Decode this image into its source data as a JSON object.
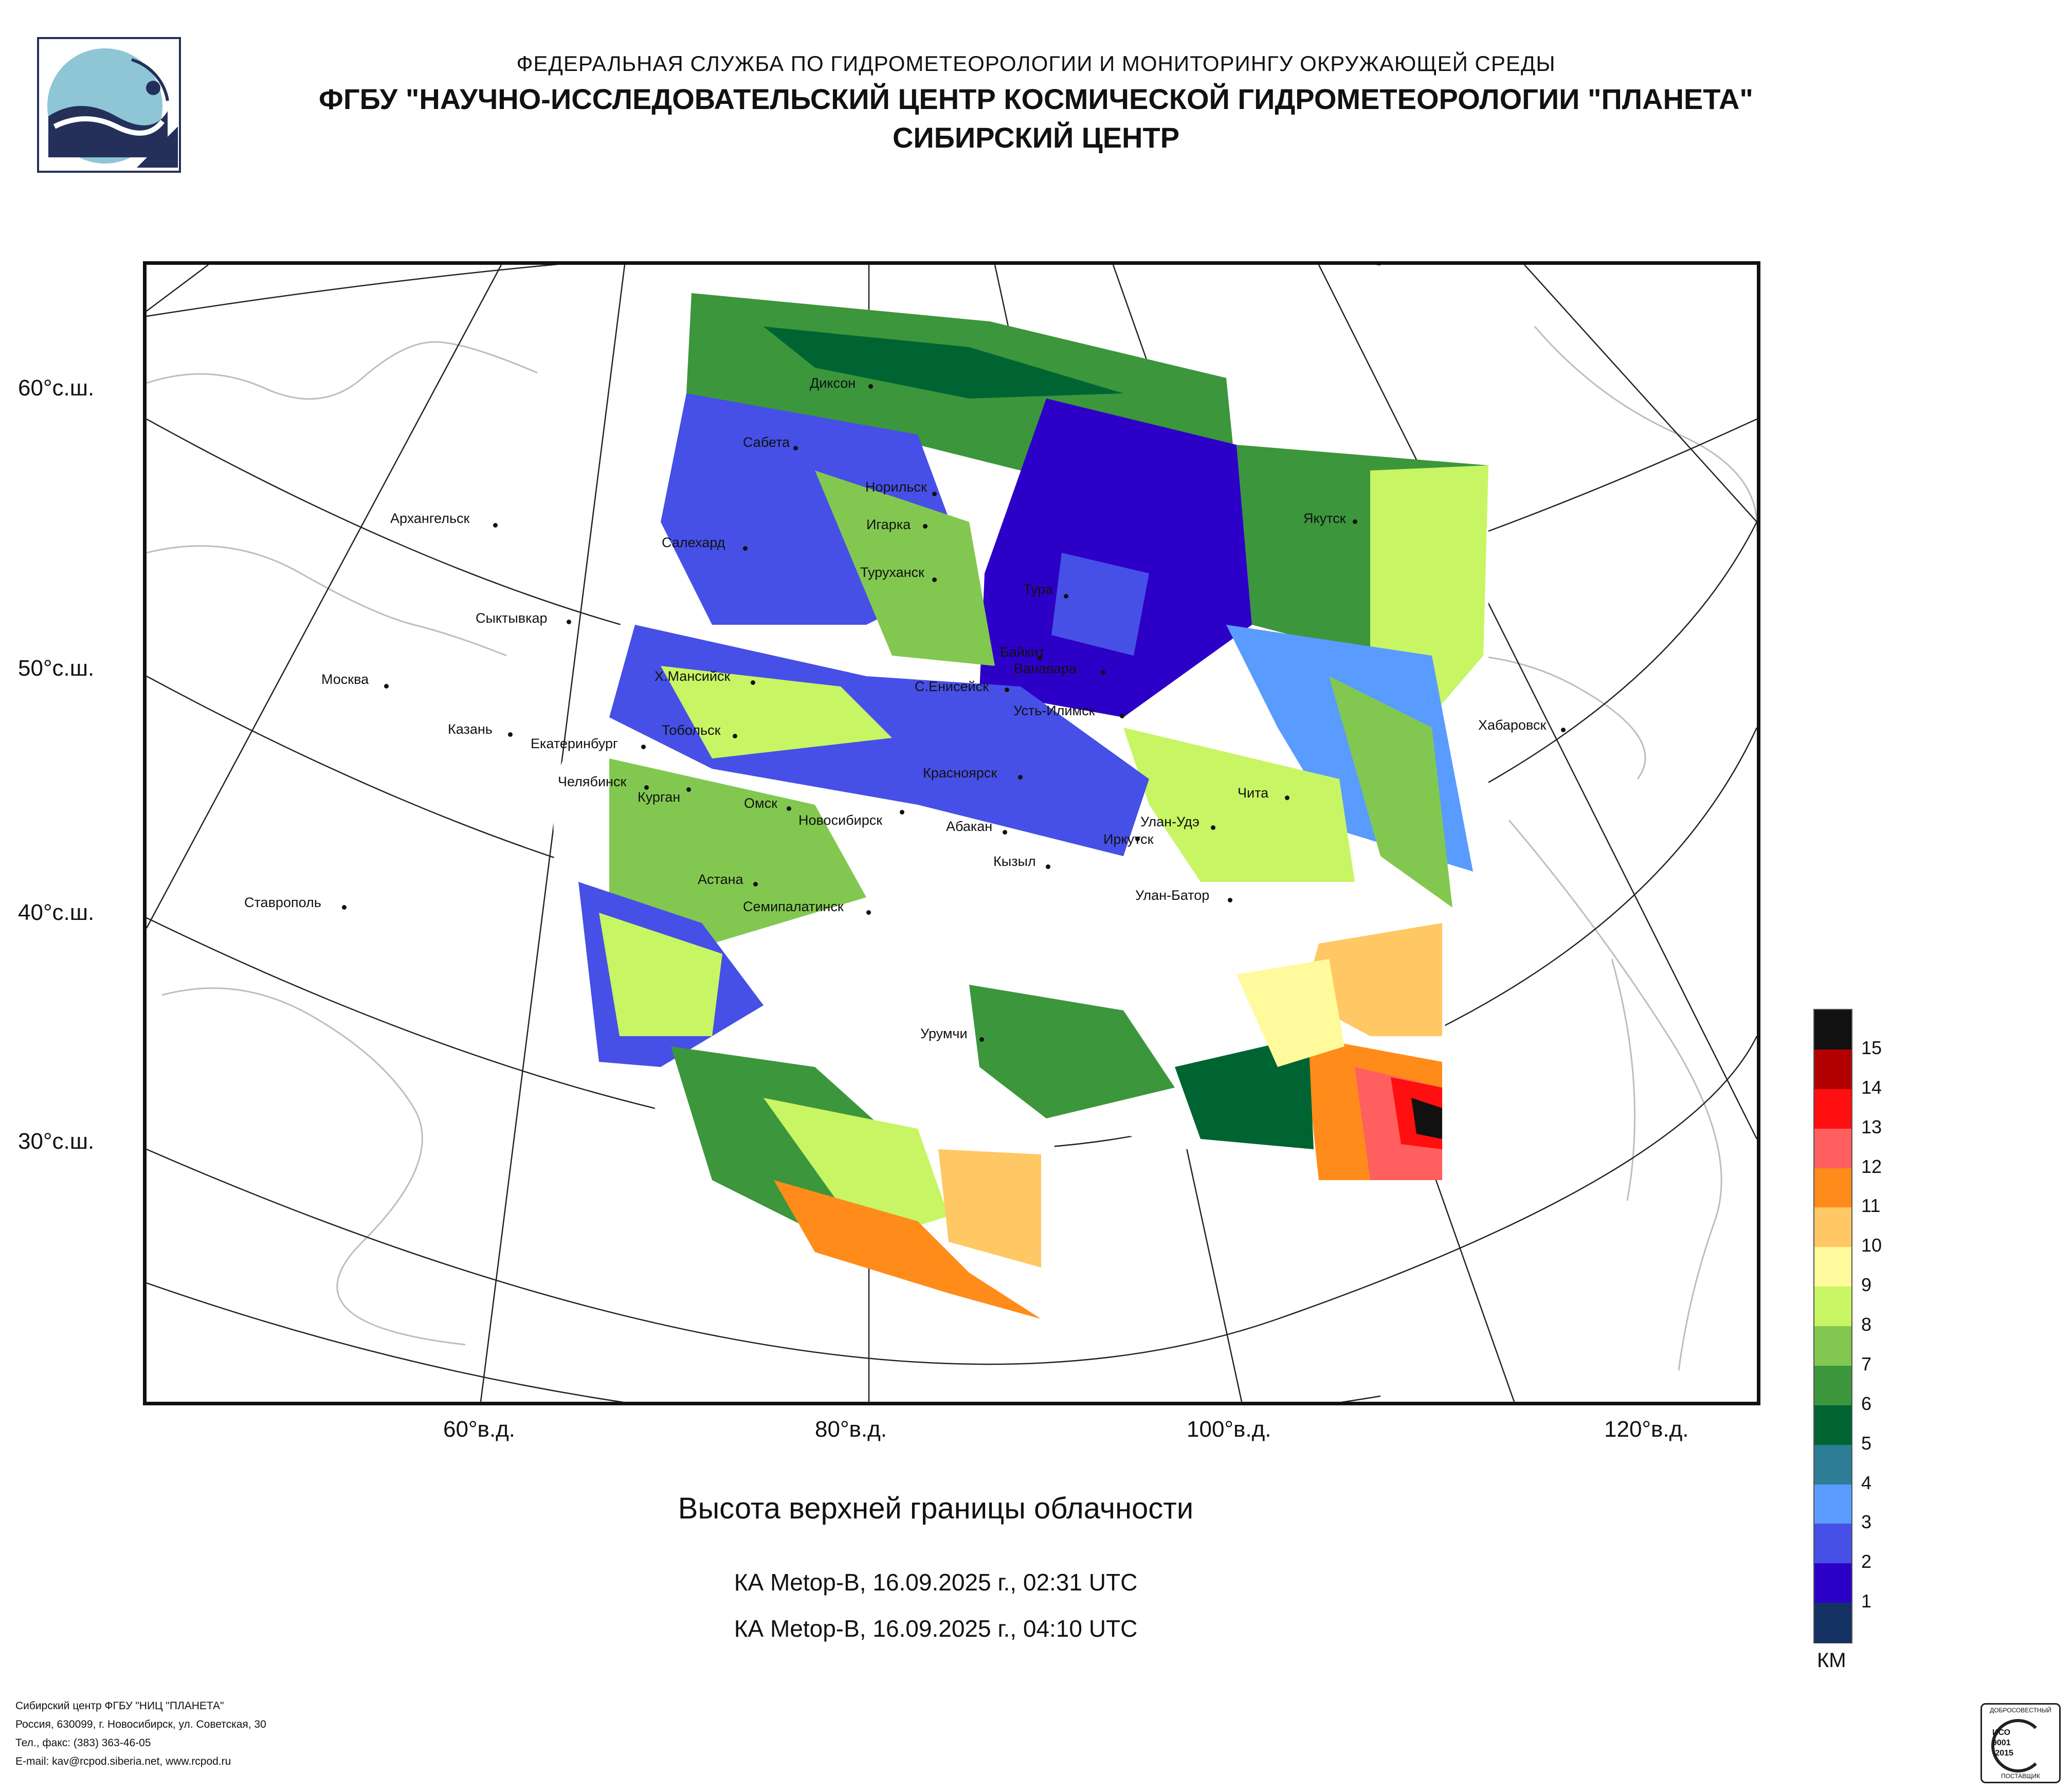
{
  "header": {
    "line1": "ФЕДЕРАЛЬНАЯ СЛУЖБА ПО ГИДРОМЕТЕОРОЛОГИИ И МОНИТОРИНГУ ОКРУЖАЮЩЕЙ СРЕДЫ",
    "line2": "ФГБУ \"НАУЧНО-ИССЛЕДОВАТЕЛЬСКИЙ ЦЕНТР КОСМИЧЕСКОЙ ГИДРОМЕТЕОРОЛОГИИ \"ПЛАНЕТА\"",
    "line3": "СИБИРСКИЙ ЦЕНТР"
  },
  "map": {
    "lat_labels": [
      "60°с.ш.",
      "50°с.ш.",
      "40°с.ш.",
      "30°с.ш."
    ],
    "lon_labels": [
      "60°в.д.",
      "80°в.д.",
      "100°в.д.",
      "120°в.д."
    ],
    "cities": [
      "Диксон",
      "Сабета",
      "Норильск",
      "Игарка",
      "Салехард",
      "Архангельск",
      "Туруханск",
      "Тура",
      "Якутск",
      "Сыктывкар",
      "Байкит",
      "Ванавара",
      "Х.Мансийск",
      "С.Енисейск",
      "Москва",
      "Усть-Илимск",
      "Казань",
      "Тобольск",
      "Екатеринбург",
      "Хабаровск",
      "Красноярск",
      "Челябинск",
      "Курган",
      "Омск",
      "Чита",
      "Новосибирск",
      "Абакан",
      "Улан-Удэ",
      "Иркутск",
      "Кызыл",
      "Астана",
      "Улан-Батор",
      "Ставрополь",
      "Семипалатинск",
      "Урумчи"
    ]
  },
  "caption": {
    "title": "Высота верхней границы облачности",
    "pass1": "КА Metop-B, 16.09.2025 г., 02:31 UTC",
    "pass2": "КА Metop-B, 16.09.2025 г., 04:10 UTC"
  },
  "legend": {
    "unit": "КМ",
    "labels": [
      "15",
      "14",
      "13",
      "12",
      "11",
      "10",
      "9",
      "8",
      "7",
      "6",
      "5",
      "4",
      "3",
      "2",
      "1"
    ],
    "colors": [
      "#111111",
      "#b30000",
      "#ff0f0f",
      "#ff5f5f",
      "#ff8c1a",
      "#ffc864",
      "#fffa9b",
      "#c8f564",
      "#82c850",
      "#3c963c",
      "#006432",
      "#2d7d96",
      "#5a9bff",
      "#4650e6",
      "#2d00c8",
      "#143264"
    ]
  },
  "footer": {
    "line1": "Сибирский центр ФГБУ \"НИЦ \"ПЛАНЕТА\"",
    "line2": "Россия, 630099, г. Новосибирск, ул. Советская, 30",
    "line3": "Тел., факс: (383) 363-46-05",
    "line4": "E-mail: kav@rcpod.siberia.net, www.rcpod.ru"
  },
  "cert": {
    "top": "ДОБРОСОВЕСТНЫЙ",
    "l1": "ИСО",
    "l2": "9001",
    "l3": "-2015",
    "bottom": "ПОСТАВЩИК"
  }
}
